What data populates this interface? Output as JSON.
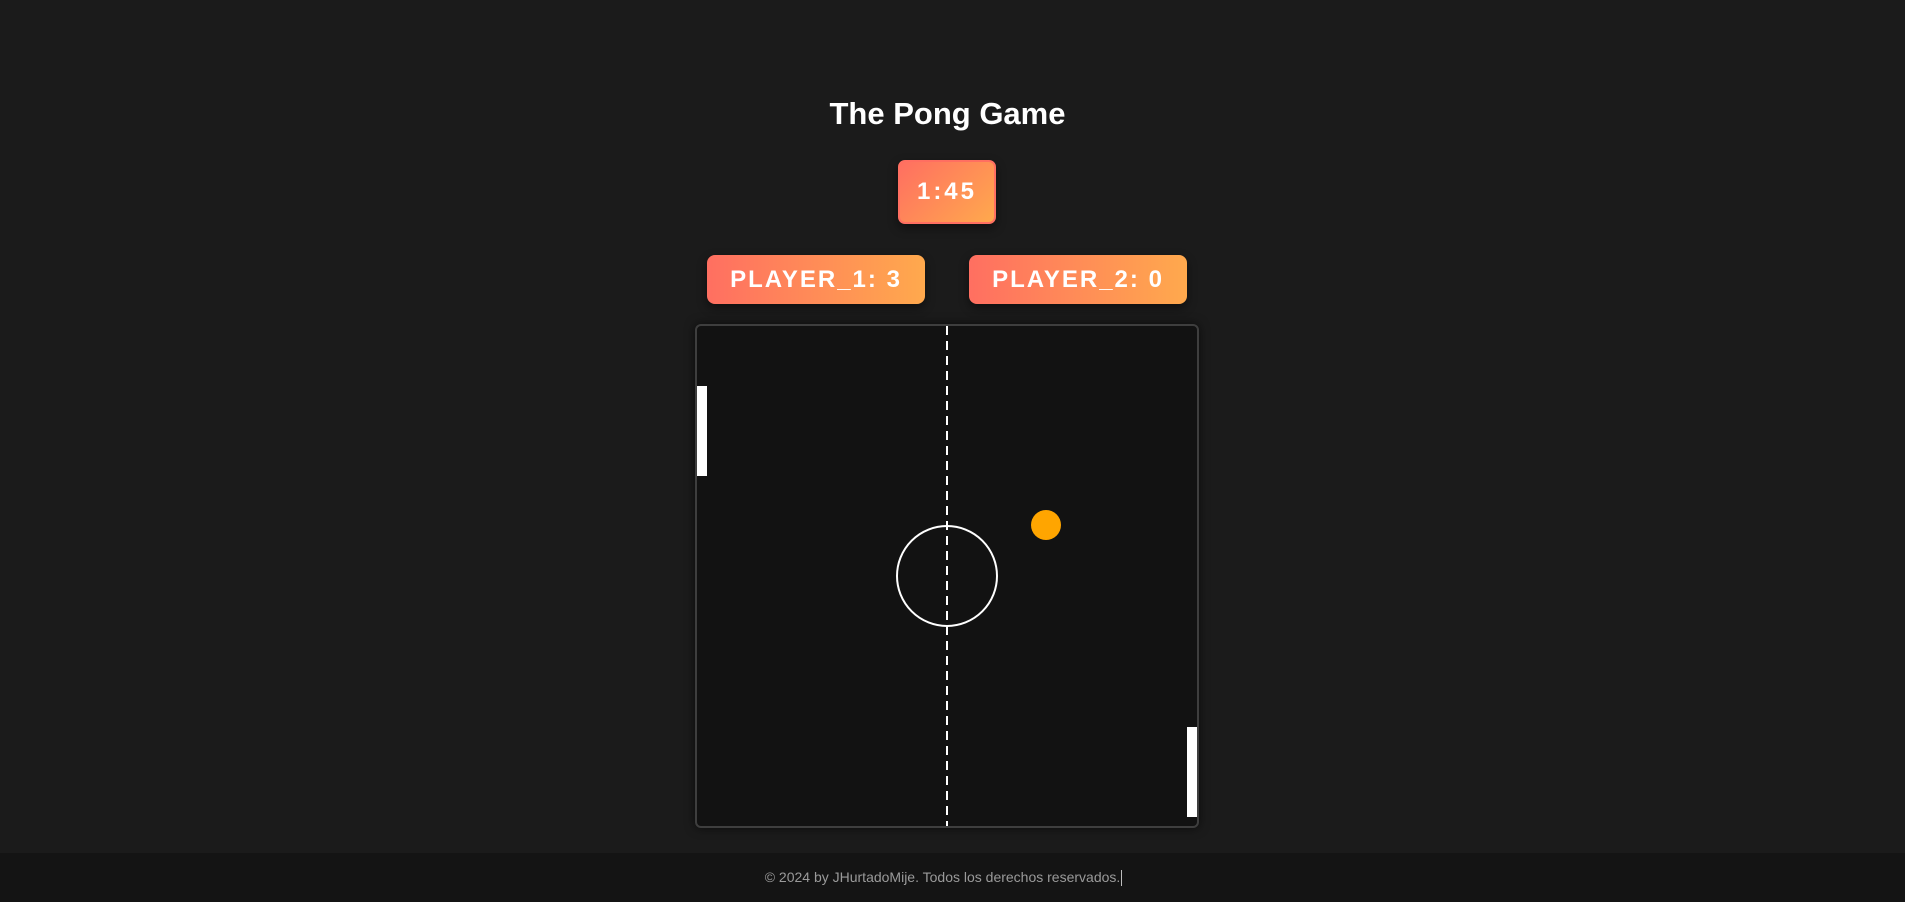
{
  "header": {
    "title": "The Pong Game"
  },
  "timer": {
    "value": "1:45"
  },
  "scoreboard": {
    "player1_label": "PLAYER_1: 3",
    "player2_label": "PLAYER_2: 0"
  },
  "footer": {
    "text": "© 2024 by JHurtadoMije. Todos los derechos reservados."
  },
  "colors": {
    "background": "#1b1b1b",
    "board": "#121212",
    "accent_start": "#ff6f61",
    "accent_end": "#ffa94d",
    "ball": "#ffa500",
    "paddle": "#ffffff"
  }
}
